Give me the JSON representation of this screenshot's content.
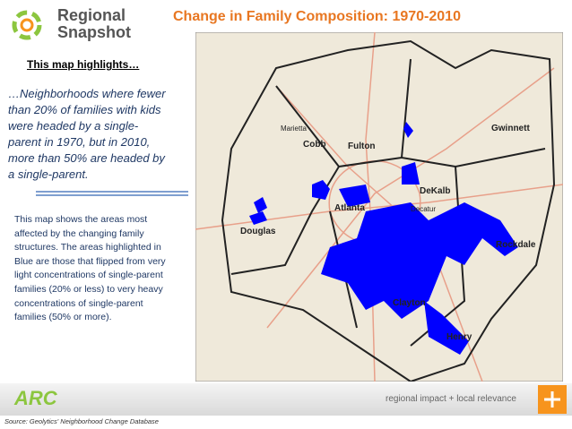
{
  "header": {
    "logo_lines": [
      "Regional",
      "Snapshot"
    ],
    "title": "Change in Family Composition: 1970-2010"
  },
  "highlight": {
    "heading": "This map highlights…",
    "lines": [
      "…Neighborhoods where fewer",
      "than 20% of families with kids",
      "were headed by a single-",
      "parent in 1970, but in 2010,",
      "more than 50% are headed by",
      "a single-parent."
    ]
  },
  "body": {
    "lines": [
      "This map shows the areas most",
      "affected by the changing family",
      "structures. The areas highlighted in",
      "Blue are those that flipped from very",
      "light concentrations of single-parent",
      "families (20% or less) to very heavy",
      "concentrations of single-parent",
      "families (50% or more)."
    ]
  },
  "map": {
    "labels": [
      "Cobb",
      "Fulton",
      "Atlanta",
      "DeKalb",
      "Douglas",
      "Gwinnett",
      "Rockdale",
      "Clayton",
      "Henry",
      "Marietta",
      "Decatur"
    ]
  },
  "footer": {
    "logo": "ARC",
    "tagline": "regional impact + local relevance",
    "source": "Source: Geolytics' Neighborhood Change Database"
  }
}
